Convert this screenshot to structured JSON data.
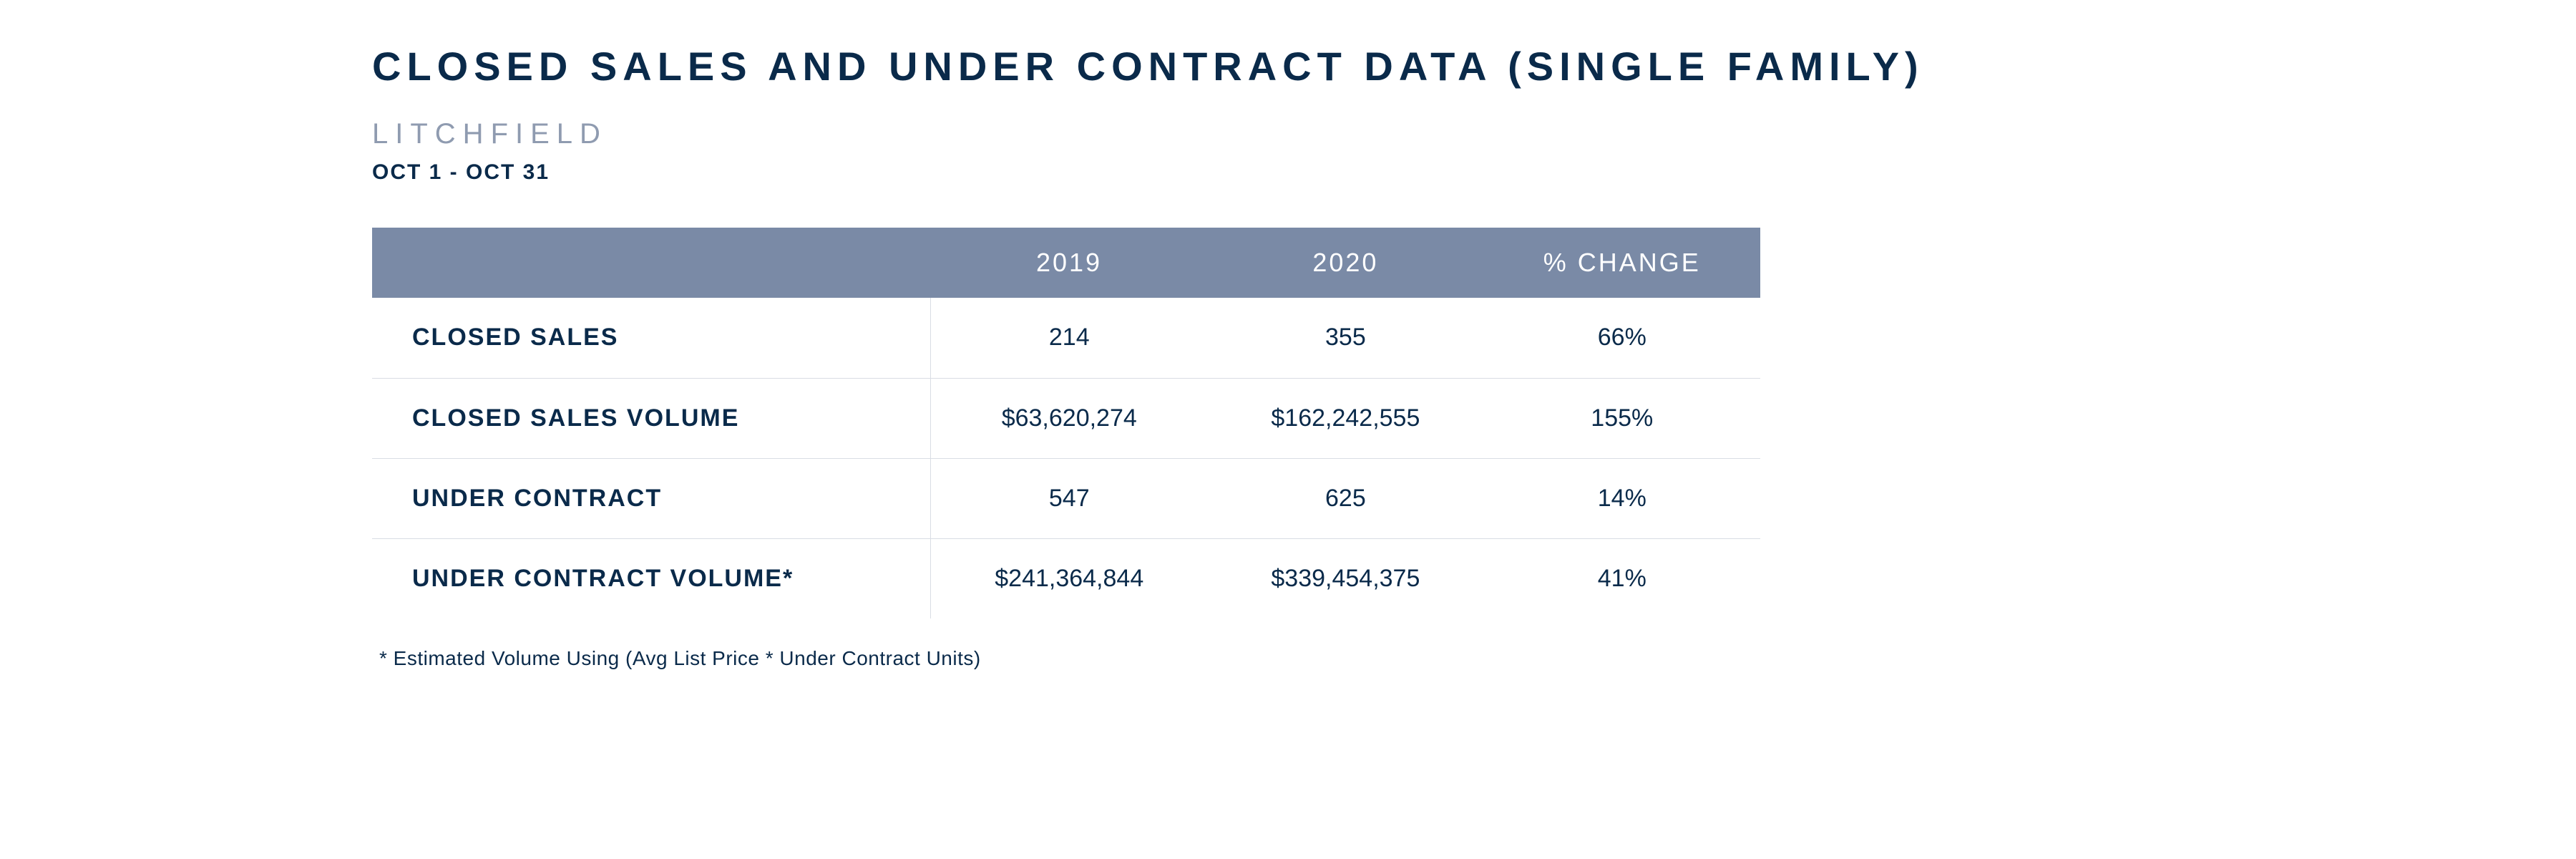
{
  "title": "CLOSED SALES AND UNDER CONTRACT DATA (SINGLE FAMILY)",
  "region": "LITCHFIELD",
  "date_range": "OCT 1 - OCT 31",
  "table": {
    "type": "table",
    "header_bg": "#7a8aa6",
    "header_fg": "#ffffff",
    "text_color": "#0a2a4a",
    "border_color": "#d9dde4",
    "columns": [
      "",
      "2019",
      "2020",
      "% CHANGE"
    ],
    "rows": [
      {
        "label": "CLOSED SALES",
        "y2019": "214",
        "y2020": "355",
        "change": "66%"
      },
      {
        "label": "CLOSED SALES VOLUME",
        "y2019": "$63,620,274",
        "y2020": "$162,242,555",
        "change": "155%"
      },
      {
        "label": "UNDER CONTRACT",
        "y2019": "547",
        "y2020": "625",
        "change": "14%"
      },
      {
        "label": "UNDER CONTRACT VOLUME*",
        "y2019": "$241,364,844",
        "y2020": "$339,454,375",
        "change": "41%"
      }
    ]
  },
  "footnote": "* Estimated Volume Using (Avg List Price * Under Contract Units)"
}
